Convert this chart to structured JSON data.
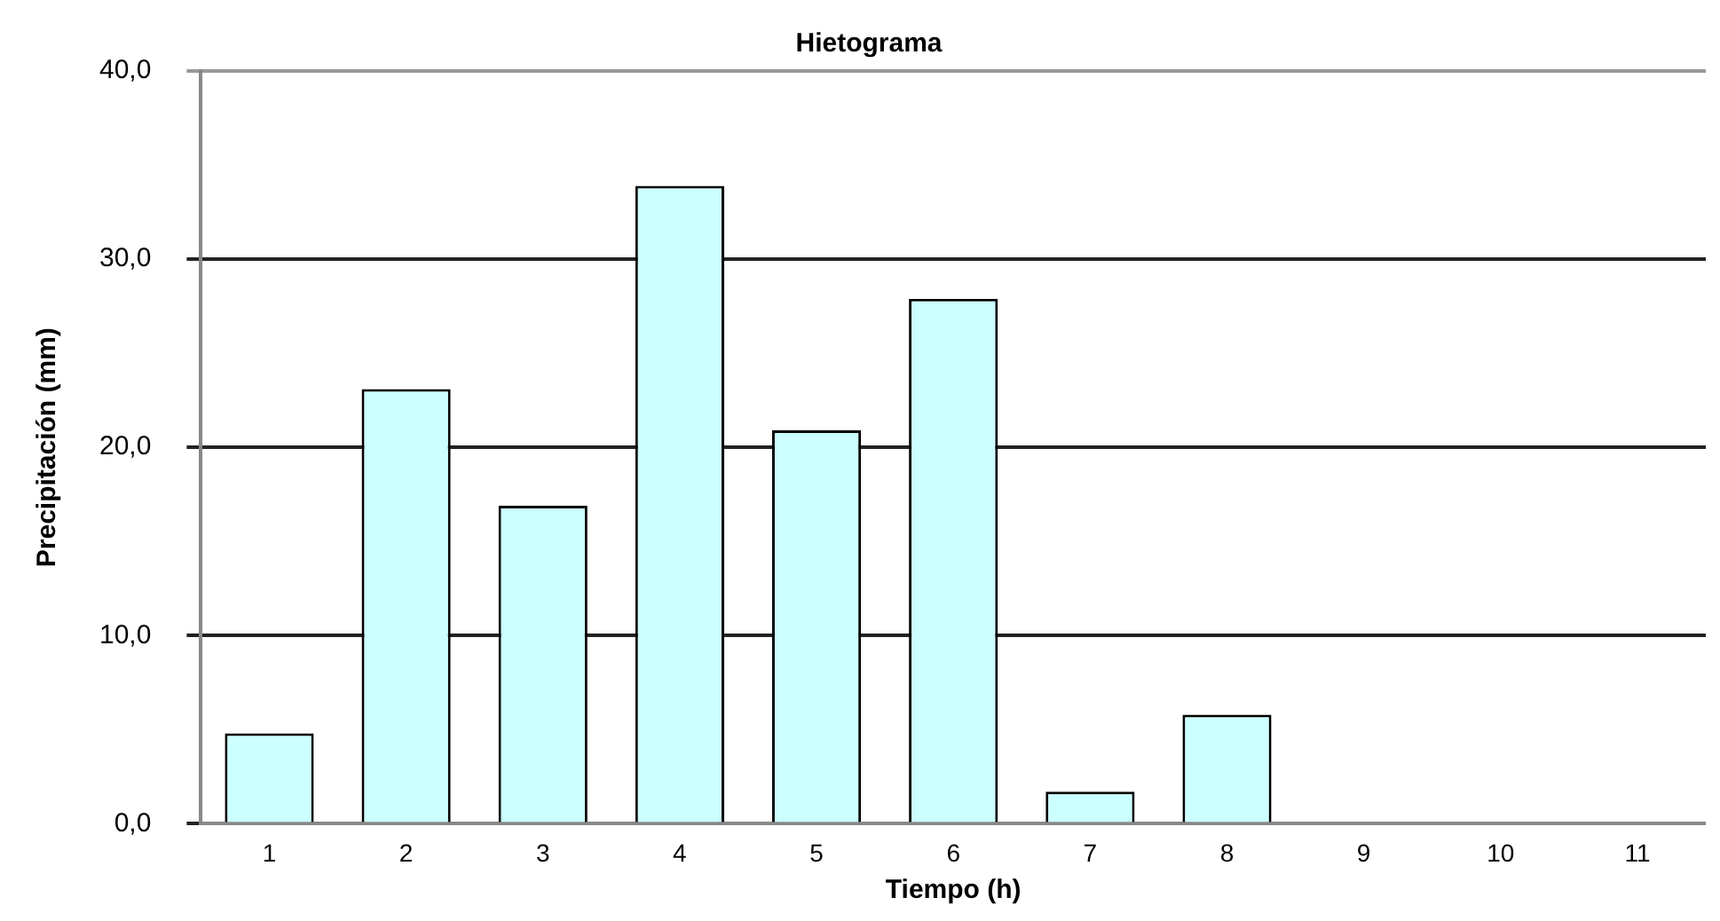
{
  "chart_data": {
    "type": "bar",
    "title": "Hietograma",
    "xlabel": "Tiempo (h)",
    "ylabel": "Precipitación (mm)",
    "categories": [
      "1",
      "2",
      "3",
      "4",
      "5",
      "6",
      "7",
      "8",
      "9",
      "10",
      "11"
    ],
    "values": [
      4.8,
      23.1,
      16.9,
      33.9,
      20.9,
      27.9,
      1.7,
      5.8,
      0,
      0,
      0
    ],
    "color": "#ccffff",
    "ylim": [
      0,
      40
    ],
    "yticks": [
      {
        "value": 0,
        "label": "0,0"
      },
      {
        "value": 10,
        "label": "10,0"
      },
      {
        "value": 20,
        "label": "20,0"
      },
      {
        "value": 30,
        "label": "30,0"
      },
      {
        "value": 40,
        "label": "40,0"
      }
    ],
    "grid": "y"
  }
}
